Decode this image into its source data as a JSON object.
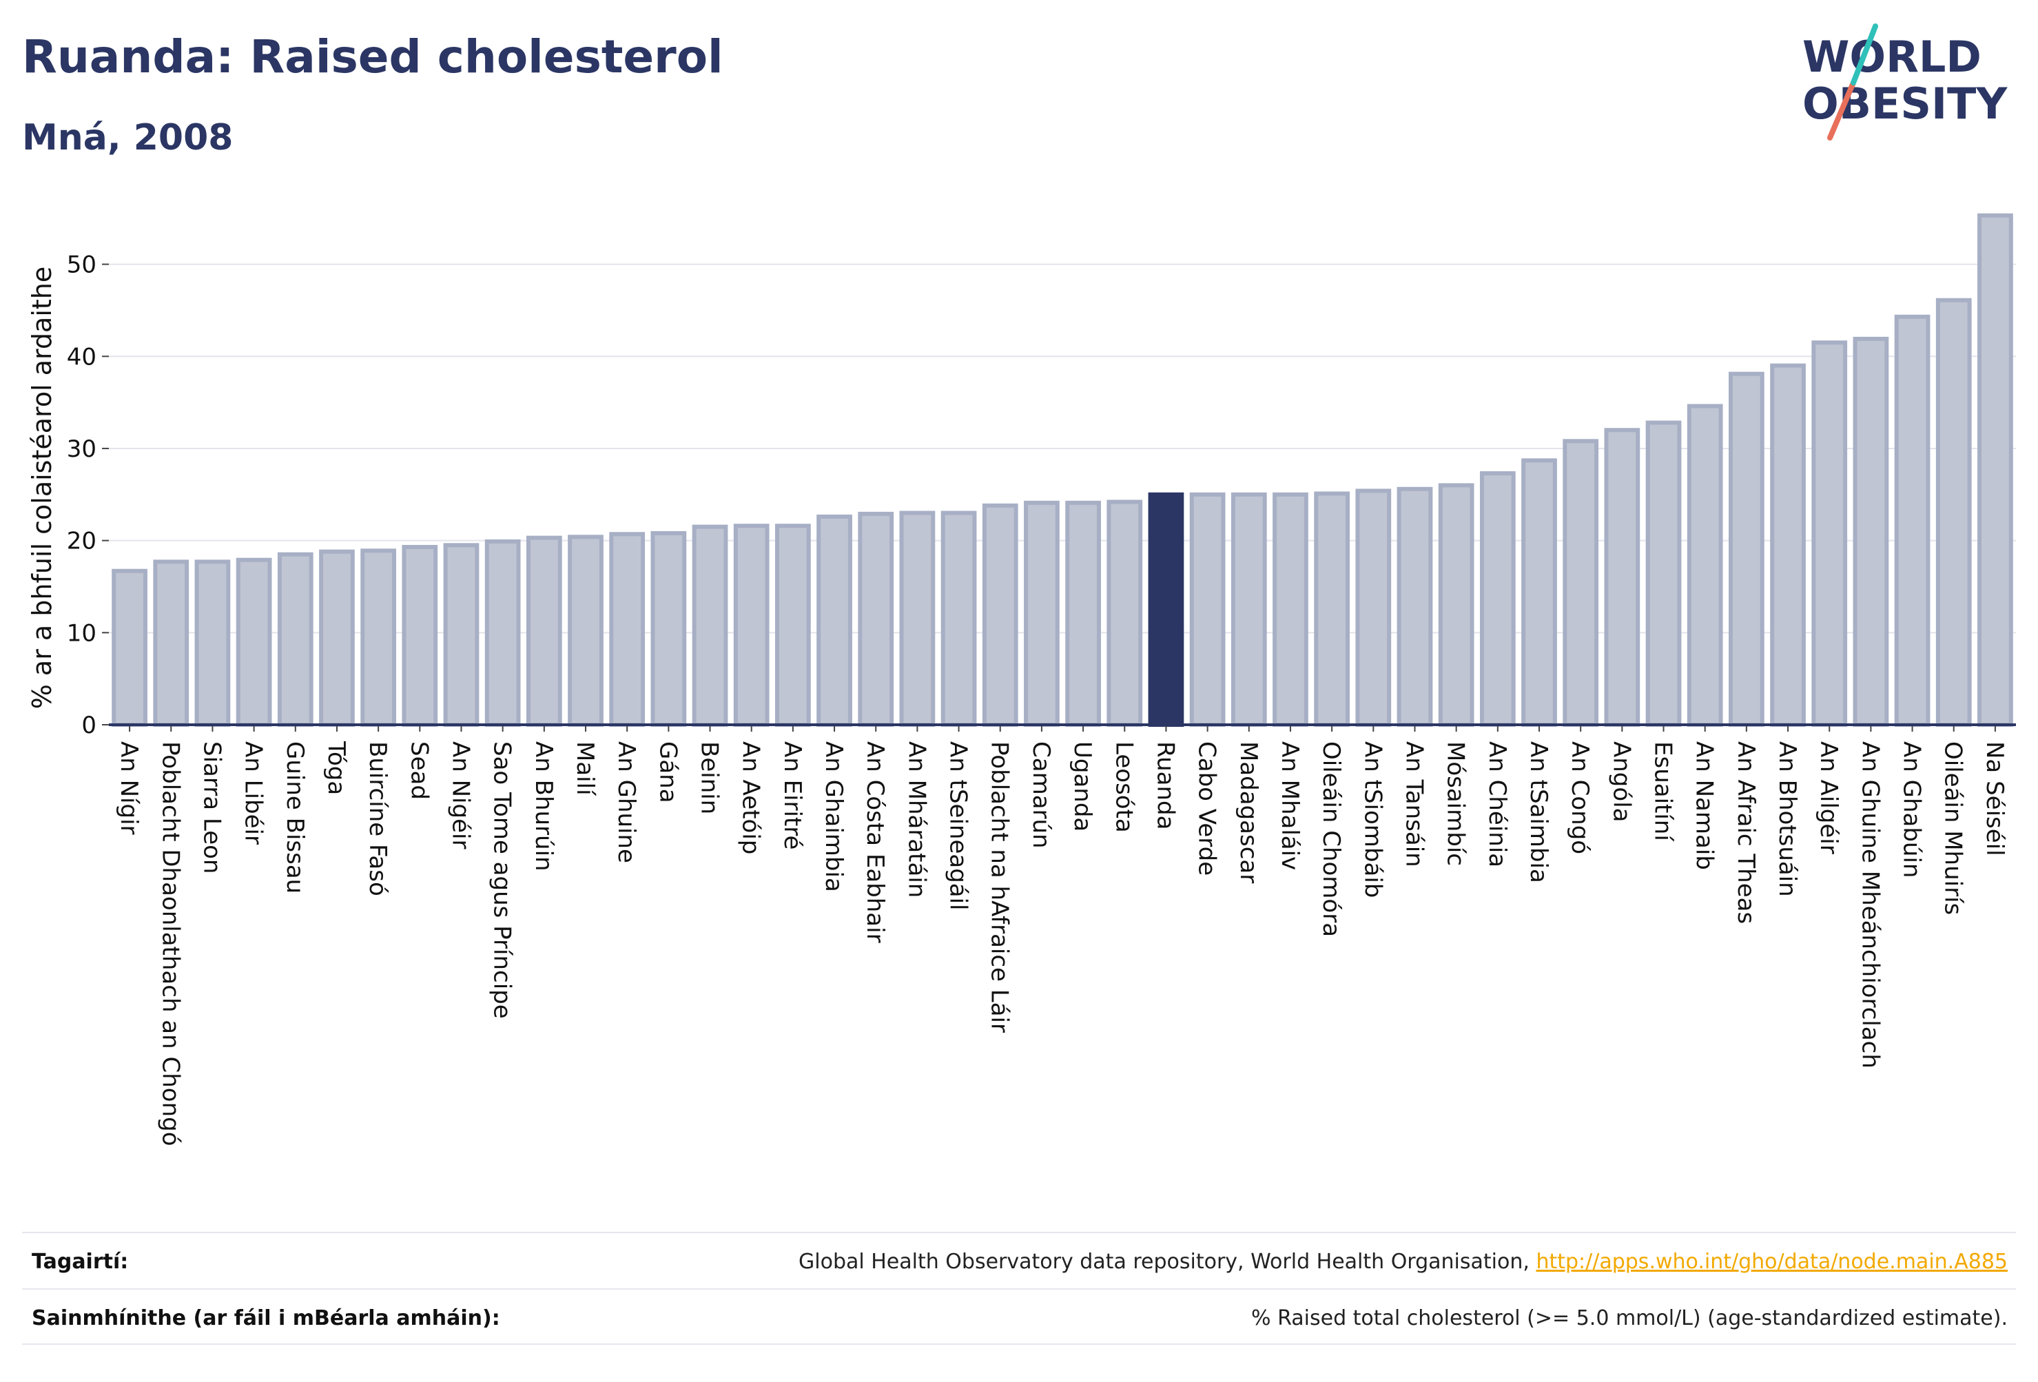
{
  "header": {
    "title": "Ruanda: Raised cholesterol",
    "subtitle": "Mná, 2008"
  },
  "logo": {
    "line1": "WORLD",
    "line2": "OBESITY"
  },
  "colors": {
    "bar": "#c0c5d3",
    "bar_border": "#a7afc5",
    "highlight": "#2b3664",
    "grid": "#e4e4ec",
    "text": "#2b3664",
    "link": "#f2a900"
  },
  "chart_data": {
    "type": "bar",
    "ylabel": "% ar a bhfuil colaistéarol ardaithe",
    "ylim": [
      0,
      57
    ],
    "yticks": [
      0,
      10,
      20,
      30,
      40,
      50
    ],
    "highlight": "Ruanda",
    "grid": true,
    "categories": [
      "An Nígir",
      "Poblacht Dhaonlathach an Chongó",
      "Siarra Leon",
      "An Libéir",
      "Guine Bissau",
      "Tóga",
      "Buircíne Fasó",
      "Sead",
      "An Nigéir",
      "Sao Tome agus Príncipe",
      "An Bhurúin",
      "Mailí",
      "An Ghuine",
      "Gána",
      "Beinin",
      "An Aetóip",
      "An Eiritré",
      "An Ghaimbia",
      "An Cósta Eabhair",
      "An Mháratáin",
      "An tSeineagáil",
      "Poblacht na hAfraice Láir",
      "Camarún",
      "Uganda",
      "Leosóta",
      "Ruanda",
      "Cabo Verde",
      "Madagascar",
      "An Mhaláiv",
      "Oileáin Chomóra",
      "An tSiombáib",
      "An Tansáin",
      "Mósaimbíc",
      "An Chéinia",
      "An tSaimbia",
      "An Congó",
      "Angóla",
      "Esuaitíní",
      "An Namaib",
      "An Afraic Theas",
      "An Bhotsuáin",
      "An Ailgéir",
      "An Ghuine Mheánchiorclach",
      "An Ghabúin",
      "Oileáin Mhuirís",
      "Na Séiséil"
    ],
    "values": [
      16.7,
      17.7,
      17.7,
      17.9,
      18.5,
      18.8,
      18.9,
      19.3,
      19.5,
      19.9,
      20.3,
      20.4,
      20.7,
      20.8,
      21.5,
      21.6,
      21.6,
      22.6,
      22.9,
      23.0,
      23.0,
      23.8,
      24.1,
      24.1,
      24.2,
      25.0,
      25.0,
      25.0,
      25.0,
      25.1,
      25.4,
      25.6,
      26.0,
      27.3,
      28.7,
      30.8,
      32.0,
      32.8,
      34.6,
      38.1,
      39.0,
      41.5,
      41.9,
      44.3,
      46.1,
      55.3
    ]
  },
  "footer": {
    "references_label": "Tagairtí:",
    "references_text": "Global Health Observatory data repository, World Health Organisation, ",
    "references_link": "http://apps.who.int/gho/data/node.main.A885",
    "definitions_label": "Sainmhínithe (ar fáil i mBéarla amháin):",
    "definitions_text": "% Raised total cholesterol (>= 5.0 mmol/L) (age-standardized estimate)."
  }
}
